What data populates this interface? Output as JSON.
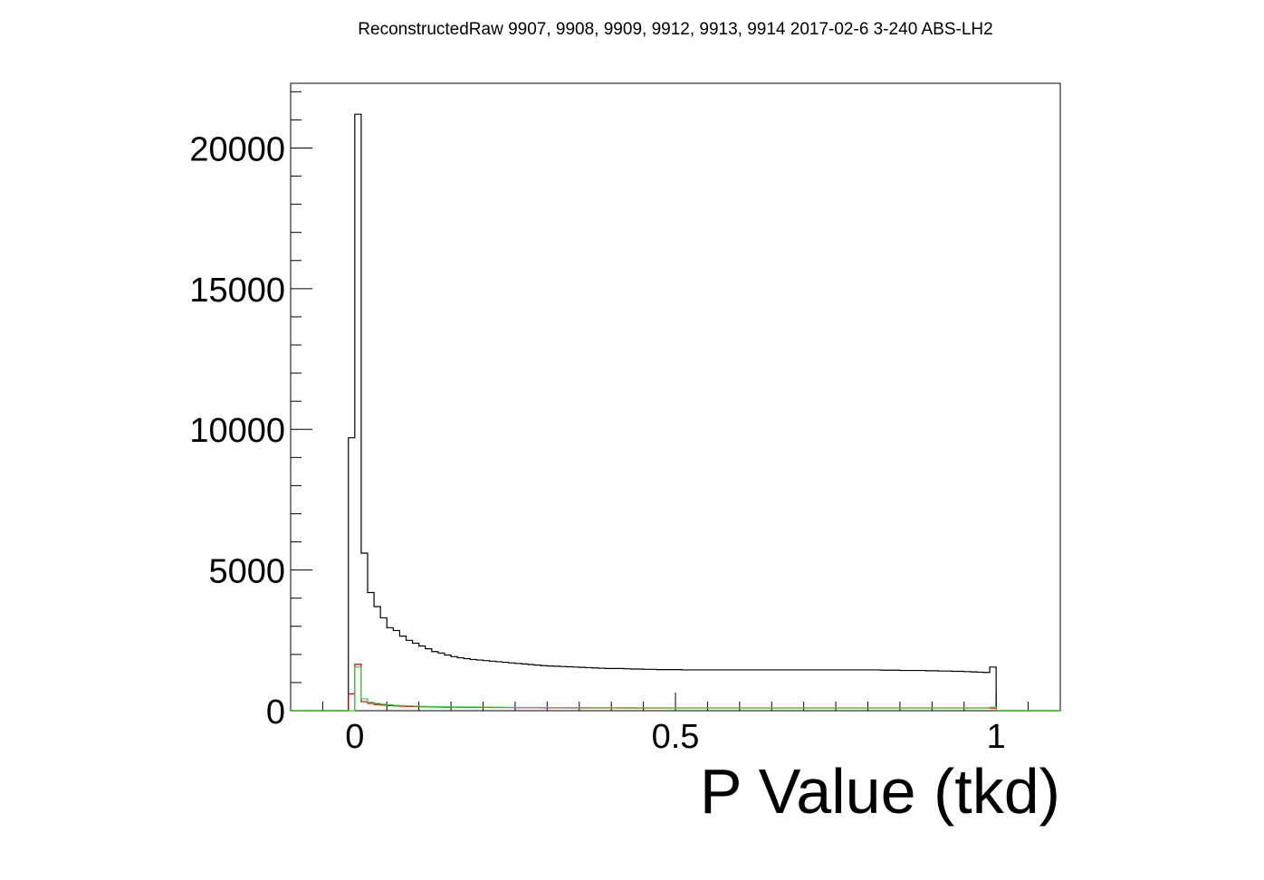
{
  "chart_data": {
    "type": "histogram",
    "title": "ReconstructedRaw 9907, 9908, 9909, 9912, 9913, 9914 2017-02-6 3-240 ABS-LH2",
    "xlabel": "P Value (tkd)",
    "ylabel": "",
    "xlim": [
      -0.1,
      1.1
    ],
    "ylim": [
      0,
      22300
    ],
    "x_ticks": [
      {
        "value": 0,
        "label": "0"
      },
      {
        "value": 0.5,
        "label": "0.5"
      },
      {
        "value": 1,
        "label": "1"
      }
    ],
    "y_ticks": [
      {
        "value": 0,
        "label": "0"
      },
      {
        "value": 5000,
        "label": "5000"
      },
      {
        "value": 10000,
        "label": "10000"
      },
      {
        "value": 15000,
        "label": "15000"
      },
      {
        "value": 20000,
        "label": "20000"
      }
    ],
    "grid": false,
    "legend": "none",
    "bin_width": 0.01,
    "series": [
      {
        "color": "#000000",
        "x_start": -0.01,
        "values": [
          9700,
          21200,
          5600,
          4200,
          3700,
          3300,
          2950,
          2850,
          2650,
          2500,
          2400,
          2300,
          2200,
          2100,
          2050,
          1980,
          1920,
          1880,
          1850,
          1820,
          1800,
          1780,
          1760,
          1740,
          1720,
          1700,
          1680,
          1660,
          1640,
          1620,
          1600,
          1590,
          1580,
          1570,
          1560,
          1550,
          1540,
          1530,
          1520,
          1510,
          1500,
          1500,
          1500,
          1490,
          1480,
          1480,
          1470,
          1470,
          1460,
          1460,
          1460,
          1460,
          1450,
          1450,
          1450,
          1450,
          1450,
          1450,
          1450,
          1450,
          1450,
          1450,
          1450,
          1450,
          1450,
          1450,
          1450,
          1450,
          1450,
          1450,
          1450,
          1450,
          1450,
          1450,
          1450,
          1450,
          1450,
          1450,
          1450,
          1450,
          1450,
          1450,
          1450,
          1440,
          1440,
          1440,
          1430,
          1430,
          1430,
          1430,
          1420,
          1420,
          1410,
          1410,
          1400,
          1400,
          1390,
          1380,
          1370,
          1360,
          1550
        ]
      },
      {
        "color": "#cc0000",
        "x_start": -0.01,
        "values": [
          600,
          1650,
          320,
          260,
          220,
          200,
          180,
          170,
          160,
          150,
          145,
          140,
          135,
          130,
          128,
          125,
          122,
          120,
          118,
          116,
          115,
          114,
          113,
          112,
          111,
          110,
          109,
          108,
          107,
          106,
          105,
          104,
          103,
          102,
          101,
          100,
          100,
          100,
          99,
          99,
          98,
          98,
          97,
          97,
          96,
          96,
          95,
          95,
          95,
          95,
          95,
          95,
          95,
          95,
          95,
          95,
          95,
          95,
          95,
          95,
          95,
          95,
          95,
          95,
          95,
          95,
          95,
          95,
          95,
          95,
          95,
          95,
          95,
          95,
          95,
          95,
          95,
          95,
          95,
          95,
          95,
          95,
          95,
          95,
          95,
          95,
          95,
          95,
          95,
          95,
          95,
          95,
          95,
          95,
          95,
          95,
          95,
          95,
          95,
          95,
          90
        ]
      },
      {
        "color": "#33cc33",
        "x_start": -0.01,
        "values": [
          0,
          1550,
          420,
          300,
          260,
          230,
          210,
          190,
          180,
          170,
          160,
          155,
          150,
          145,
          140,
          138,
          135,
          132,
          130,
          128,
          126,
          124,
          122,
          120,
          118,
          116,
          115,
          114,
          113,
          112,
          111,
          110,
          110,
          109,
          109,
          108,
          108,
          107,
          107,
          106,
          106,
          105,
          105,
          104,
          104,
          103,
          103,
          102,
          102,
          101,
          101,
          100,
          100,
          100,
          100,
          100,
          100,
          100,
          100,
          100,
          100,
          100,
          100,
          100,
          100,
          100,
          100,
          100,
          100,
          100,
          100,
          100,
          100,
          100,
          100,
          100,
          100,
          100,
          100,
          100,
          100,
          100,
          100,
          100,
          100,
          100,
          100,
          100,
          100,
          100,
          100,
          100,
          100,
          100,
          100,
          100,
          100,
          100,
          100,
          100,
          120
        ]
      }
    ]
  }
}
